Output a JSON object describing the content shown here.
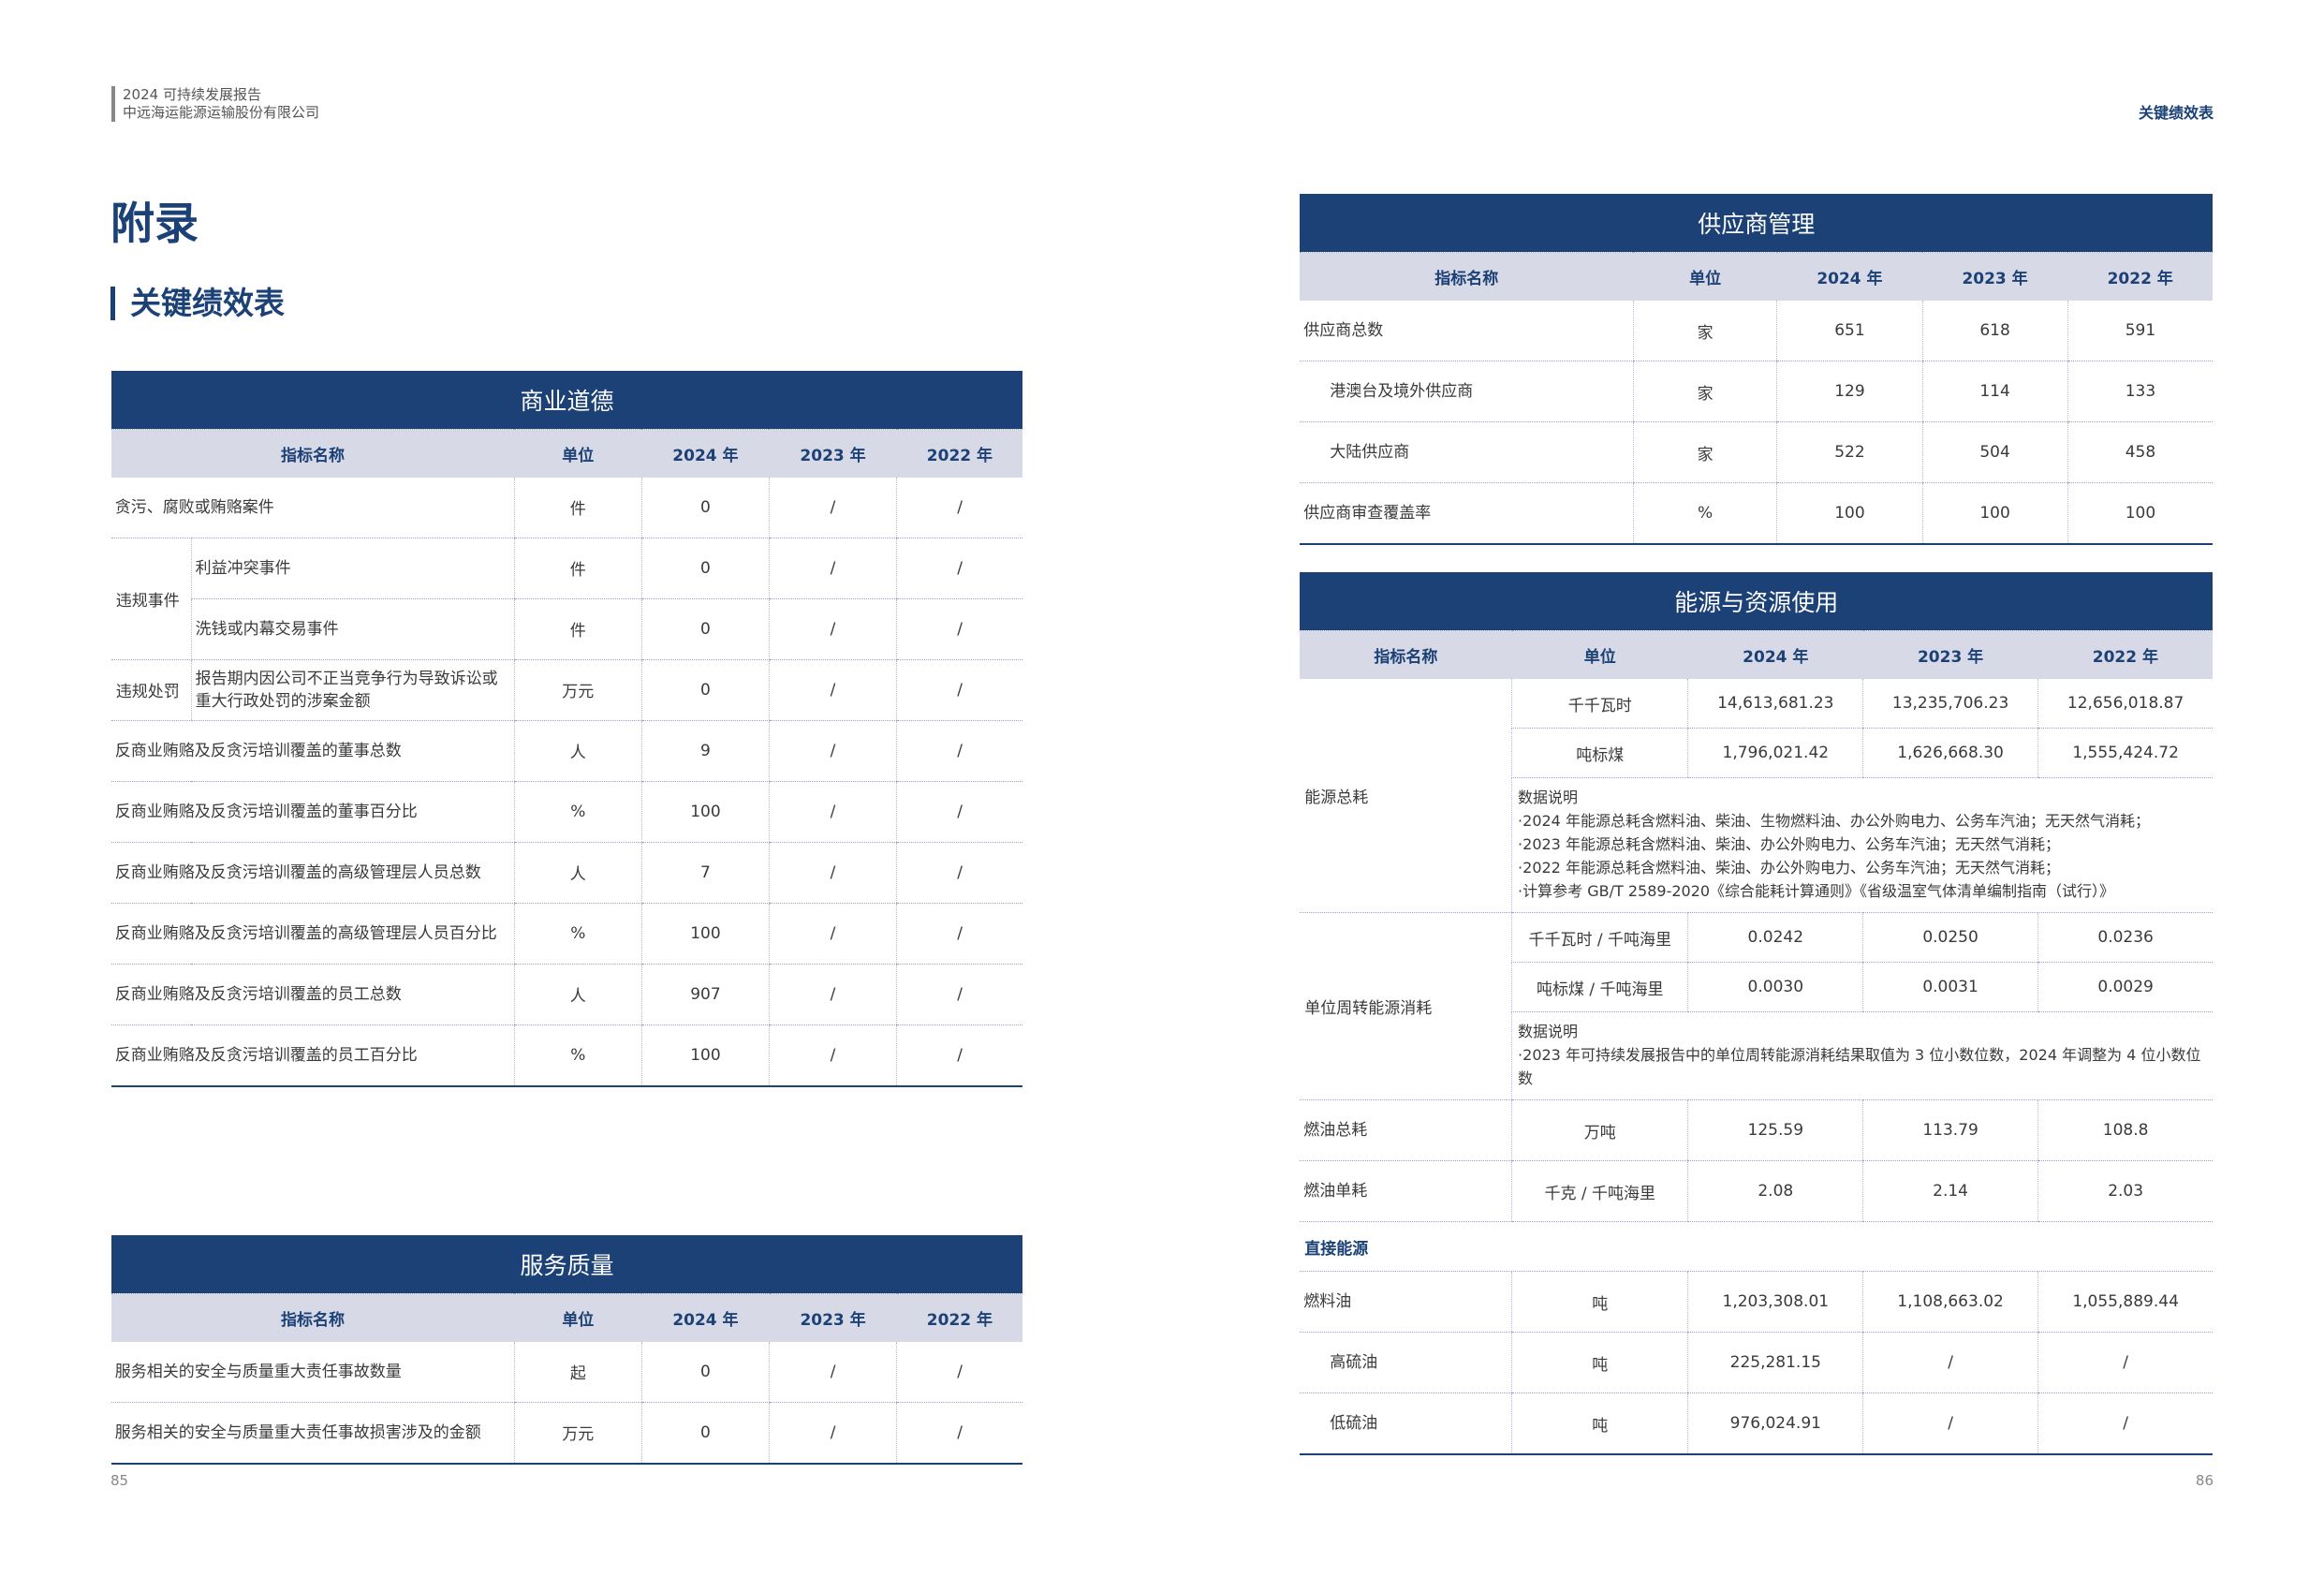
{
  "header": {
    "report": "2024 可持续发展报告",
    "company": "中远海运能源运输股份有限公司",
    "section": "关键绩效表"
  },
  "page_title": "附录",
  "subtitle": "关键绩效表",
  "tables": [
    {
      "title": "商业道德",
      "columns": [
        "指标名称",
        "单位",
        "2024 年",
        "2023 年",
        "2022 年"
      ],
      "rows": [
        {
          "name": "贪污、腐败或贿赂案件",
          "unit": "件",
          "values": [
            "0",
            "/",
            "/"
          ]
        },
        {
          "group": "违规事件",
          "items": [
            {
              "name": "利益冲突事件",
              "unit": "件",
              "values": [
                "0",
                "/",
                "/"
              ]
            },
            {
              "name": "洗钱或内幕交易事件",
              "unit": "件",
              "values": [
                "0",
                "/",
                "/"
              ]
            }
          ]
        },
        {
          "group": "违规处罚",
          "items": [
            {
              "name": "报告期内因公司不正当竞争行为导致诉讼或重大行政处罚的涉案金额",
              "unit": "万元",
              "values": [
                "0",
                "/",
                "/"
              ]
            }
          ]
        },
        {
          "name": "反商业贿赂及反贪污培训覆盖的董事总数",
          "unit": "人",
          "values": [
            "9",
            "/",
            "/"
          ]
        },
        {
          "name": "反商业贿赂及反贪污培训覆盖的董事百分比",
          "unit": "%",
          "values": [
            "100",
            "/",
            "/"
          ]
        },
        {
          "name": "反商业贿赂及反贪污培训覆盖的高级管理层人员总数",
          "unit": "人",
          "values": [
            "7",
            "/",
            "/"
          ]
        },
        {
          "name": "反商业贿赂及反贪污培训覆盖的高级管理层人员百分比",
          "unit": "%",
          "values": [
            "100",
            "/",
            "/"
          ]
        },
        {
          "name": "反商业贿赂及反贪污培训覆盖的员工总数",
          "unit": "人",
          "values": [
            "907",
            "/",
            "/"
          ]
        },
        {
          "name": "反商业贿赂及反贪污培训覆盖的员工百分比",
          "unit": "%",
          "values": [
            "100",
            "/",
            "/"
          ]
        }
      ]
    },
    {
      "title": "服务质量",
      "columns": [
        "指标名称",
        "单位",
        "2024 年",
        "2023 年",
        "2022 年"
      ],
      "rows": [
        {
          "name": "服务相关的安全与质量重大责任事故数量",
          "unit": "起",
          "values": [
            "0",
            "/",
            "/"
          ]
        },
        {
          "name": "服务相关的安全与质量重大责任事故损害涉及的金额",
          "unit": "万元",
          "values": [
            "0",
            "/",
            "/"
          ]
        }
      ]
    },
    {
      "title": "供应商管理",
      "columns": [
        "指标名称",
        "单位",
        "2024 年",
        "2023 年",
        "2022 年"
      ],
      "rows": [
        {
          "name": "供应商总数",
          "unit": "家",
          "values": [
            "651",
            "618",
            "591"
          ],
          "children": [
            {
              "name": "港澳台及境外供应商",
              "unit": "家",
              "values": [
                "129",
                "114",
                "133"
              ]
            },
            {
              "name": "大陆供应商",
              "unit": "家",
              "values": [
                "522",
                "504",
                "458"
              ]
            }
          ]
        },
        {
          "name": "供应商审查覆盖率",
          "unit": "%",
          "values": [
            "100",
            "100",
            "100"
          ]
        }
      ]
    },
    {
      "title": "能源与资源使用",
      "columns": [
        "指标名称",
        "单位",
        "2024 年",
        "2023 年",
        "2022 年"
      ],
      "rows": [
        {
          "group": "能源总耗",
          "items": [
            {
              "unit": "千千瓦时",
              "values": [
                "14,613,681.23",
                "13,235,706.23",
                "12,656,018.87"
              ]
            },
            {
              "unit": "吨标煤",
              "values": [
                "1,796,021.42",
                "1,626,668.30",
                "1,555,424.72"
              ]
            },
            {
              "note": [
                "数据说明",
                "·2024 年能源总耗含燃料油、柴油、生物燃料油、办公外购电力、公务车汽油；无天然气消耗；",
                "·2023 年能源总耗含燃料油、柴油、办公外购电力、公务车汽油；无天然气消耗；",
                "·2022 年能源总耗含燃料油、柴油、办公外购电力、公务车汽油；无天然气消耗；",
                "·计算参考 GB/T 2589-2020《综合能耗计算通则》《省级温室气体清单编制指南（试行）》"
              ]
            }
          ]
        },
        {
          "group": "单位周转能源消耗",
          "items": [
            {
              "unit": "千千瓦时 / 千吨海里",
              "values": [
                "0.0242",
                "0.0250",
                "0.0236"
              ]
            },
            {
              "unit": "吨标煤 / 千吨海里",
              "values": [
                "0.0030",
                "0.0031",
                "0.0029"
              ]
            },
            {
              "note": [
                "数据说明",
                "·2023 年可持续发展报告中的单位周转能源消耗结果取值为 3 位小数位数，2024 年调整为 4 位小数位数"
              ]
            }
          ]
        },
        {
          "name": "燃油总耗",
          "unit": "万吨",
          "values": [
            "125.59",
            "113.79",
            "108.8"
          ]
        },
        {
          "name": "燃油单耗",
          "unit": "千克 / 千吨海里",
          "values": [
            "2.08",
            "2.14",
            "2.03"
          ]
        },
        {
          "heading": "直接能源"
        },
        {
          "name": "燃料油",
          "unit": "吨",
          "values": [
            "1,203,308.01",
            "1,108,663.02",
            "1,055,889.44"
          ],
          "children": [
            {
              "name": "高硫油",
              "unit": "吨",
              "values": [
                "225,281.15",
                "/",
                "/"
              ]
            },
            {
              "name": "低硫油",
              "unit": "吨",
              "values": [
                "976,024.91",
                "/",
                "/"
              ]
            }
          ]
        }
      ]
    }
  ],
  "page_numbers": [
    "85",
    "86"
  ]
}
